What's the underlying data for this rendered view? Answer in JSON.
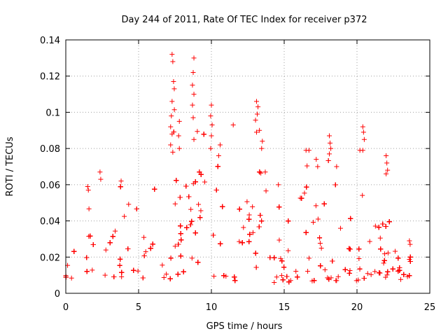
{
  "chart_data": {
    "type": "scatter",
    "title": "Day 244 of 2011, Rate Of TEC Index for receiver p372",
    "xlabel": "GPS time / hours",
    "ylabel": "ROTI / TECUs",
    "xlim": [
      0,
      25
    ],
    "ylim": [
      0,
      0.14
    ],
    "xticks": [
      0,
      5,
      10,
      15,
      20,
      25
    ],
    "yticks": [
      0,
      0.02,
      0.04,
      0.06,
      0.08,
      0.1,
      0.12,
      0.14
    ],
    "ytick_labels": [
      "0",
      "0.02",
      "0.04",
      "0.06",
      "0.08",
      "0.1",
      "0.12",
      "0.14"
    ],
    "grid": true,
    "marker": "plus",
    "series_color": "#ff0000",
    "envelope": {
      "x": [
        0,
        0.5,
        1.0,
        1.3,
        1.6,
        2.0,
        2.4,
        2.8,
        3.3,
        3.8,
        4.3,
        5.0,
        5.5,
        6.0,
        6.5,
        7.0,
        7.3,
        7.6,
        8.0,
        8.5,
        8.8,
        9.2,
        9.6,
        10.0,
        10.4,
        10.8,
        11.2,
        11.6,
        12.0,
        12.6,
        13.0,
        13.4,
        13.8,
        14.3,
        14.8,
        15.3,
        15.8,
        16.3,
        16.8,
        17.3,
        17.8,
        18.2,
        18.6,
        19.0,
        19.5,
        20.0,
        20.4,
        20.8,
        21.2,
        21.6,
        22.0,
        22.3,
        22.7,
        23.0,
        23.5,
        23.8
      ],
      "high": [
        0.014,
        0.022,
        0.04,
        0.058,
        0.05,
        0.04,
        0.065,
        0.045,
        0.05,
        0.06,
        0.055,
        0.05,
        0.062,
        0.06,
        0.07,
        0.075,
        0.13,
        0.1,
        0.07,
        0.075,
        0.13,
        0.085,
        0.09,
        0.1,
        0.075,
        0.085,
        0.07,
        0.06,
        0.045,
        0.055,
        0.105,
        0.08,
        0.06,
        0.06,
        0.045,
        0.04,
        0.05,
        0.08,
        0.075,
        0.06,
        0.087,
        0.07,
        0.065,
        0.04,
        0.05,
        0.08,
        0.09,
        0.065,
        0.05,
        0.04,
        0.075,
        0.05,
        0.03,
        0.015,
        0.015,
        0.028
      ],
      "low": [
        0.007,
        0.008,
        0.007,
        0.008,
        0.009,
        0.008,
        0.009,
        0.009,
        0.009,
        0.009,
        0.009,
        0.009,
        0.008,
        0.008,
        0.008,
        0.008,
        0.008,
        0.008,
        0.008,
        0.008,
        0.008,
        0.007,
        0.007,
        0.007,
        0.007,
        0.007,
        0.007,
        0.007,
        0.007,
        0.007,
        0.007,
        0.007,
        0.007,
        0.006,
        0.006,
        0.005,
        0.006,
        0.006,
        0.006,
        0.007,
        0.007,
        0.007,
        0.007,
        0.006,
        0.007,
        0.007,
        0.008,
        0.008,
        0.008,
        0.008,
        0.008,
        0.008,
        0.007,
        0.007,
        0.008,
        0.009
      ]
    },
    "x_range_points": [
      0,
      23.8
    ],
    "outliers": [
      [
        7.3,
        0.132
      ],
      [
        7.35,
        0.128
      ],
      [
        7.4,
        0.117
      ],
      [
        7.45,
        0.113
      ],
      [
        7.3,
        0.106
      ],
      [
        7.25,
        0.098
      ],
      [
        7.2,
        0.092
      ],
      [
        7.3,
        0.088
      ],
      [
        7.2,
        0.082
      ],
      [
        7.35,
        0.078
      ],
      [
        8.8,
        0.13
      ],
      [
        8.75,
        0.122
      ],
      [
        8.7,
        0.115
      ],
      [
        8.8,
        0.11
      ],
      [
        8.7,
        0.104
      ],
      [
        8.75,
        0.097
      ],
      [
        8.8,
        0.085
      ],
      [
        7.8,
        0.095
      ],
      [
        7.75,
        0.087
      ],
      [
        7.8,
        0.08
      ],
      [
        10.0,
        0.104
      ],
      [
        9.95,
        0.098
      ],
      [
        10.05,
        0.093
      ],
      [
        10.0,
        0.087
      ],
      [
        9.95,
        0.08
      ],
      [
        13.1,
        0.106
      ],
      [
        13.2,
        0.103
      ],
      [
        13.15,
        0.099
      ],
      [
        13.3,
        0.09
      ],
      [
        13.5,
        0.084
      ],
      [
        13.45,
        0.08
      ],
      [
        13.1,
        0.089
      ],
      [
        11.5,
        0.093
      ],
      [
        10.6,
        0.082
      ],
      [
        10.5,
        0.076
      ],
      [
        16.5,
        0.079
      ],
      [
        16.7,
        0.079
      ],
      [
        17.2,
        0.074
      ],
      [
        17.3,
        0.07
      ],
      [
        18.1,
        0.087
      ],
      [
        18.15,
        0.083
      ],
      [
        18.2,
        0.08
      ],
      [
        18.1,
        0.077
      ],
      [
        18.6,
        0.07
      ],
      [
        20.2,
        0.079
      ],
      [
        20.4,
        0.092
      ],
      [
        20.45,
        0.089
      ],
      [
        20.5,
        0.085
      ],
      [
        20.4,
        0.079
      ],
      [
        22.0,
        0.076
      ],
      [
        22.05,
        0.072
      ],
      [
        22.1,
        0.068
      ],
      [
        22.0,
        0.066
      ],
      [
        2.35,
        0.067
      ],
      [
        2.4,
        0.063
      ],
      [
        1.5,
        0.059
      ],
      [
        1.55,
        0.057
      ],
      [
        3.8,
        0.062
      ],
      [
        13.7,
        0.067
      ],
      [
        14.6,
        0.06
      ],
      [
        23.6,
        0.029
      ],
      [
        23.65,
        0.027
      ]
    ]
  }
}
